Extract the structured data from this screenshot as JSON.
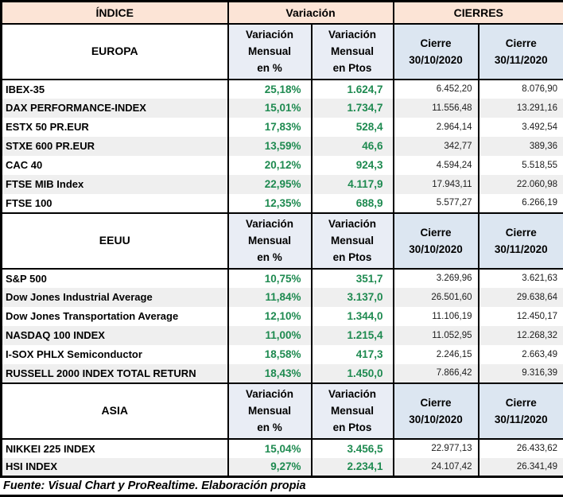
{
  "colors": {
    "header_bg": "#FCE4D6",
    "variacion_subheader_bg": "#E9EDF5",
    "cierre_subheader_bg": "#DCE6F1",
    "row_stripe_bg": "#EFEFEF",
    "positive_green": "#1E8A50",
    "border": "#000000"
  },
  "header": {
    "indice": "ÍNDICE",
    "variacion": "Variación",
    "cierres": "CIERRES"
  },
  "column_headers": {
    "pct_lines": [
      "Variación",
      "Mensual",
      "en %"
    ],
    "ptos_lines": [
      "Variación",
      "Mensual",
      "en Ptos"
    ],
    "cierre1_lines": [
      "Cierre",
      "30/10/2020"
    ],
    "cierre2_lines": [
      "Cierre",
      "30/11/2020"
    ]
  },
  "footer": {
    "source_note": "Fuente: Visual Chart y ProRealtime. Elaboración propia"
  },
  "chart_data": {
    "type": "table",
    "title": "Variación mensual y cierres de índices bursátiles",
    "columns": [
      "ÍNDICE",
      "Variación Mensual en %",
      "Variación Mensual en Ptos",
      "Cierre 30/10/2020",
      "Cierre 30/11/2020"
    ],
    "sections": [
      {
        "region": "EUROPA",
        "rows": [
          {
            "name": "IBEX-35",
            "pct": "25,18%",
            "ptos": "1.624,7",
            "cierre1": "6.452,20",
            "cierre2": "8.076,90"
          },
          {
            "name": "DAX PERFORMANCE-INDEX",
            "pct": "15,01%",
            "ptos": "1.734,7",
            "cierre1": "11.556,48",
            "cierre2": "13.291,16"
          },
          {
            "name": "ESTX 50 PR.EUR",
            "pct": "17,83%",
            "ptos": "528,4",
            "cierre1": "2.964,14",
            "cierre2": "3.492,54"
          },
          {
            "name": "STXE 600 PR.EUR",
            "pct": "13,59%",
            "ptos": "46,6",
            "cierre1": "342,77",
            "cierre2": "389,36"
          },
          {
            "name": "CAC 40",
            "pct": "20,12%",
            "ptos": "924,3",
            "cierre1": "4.594,24",
            "cierre2": "5.518,55"
          },
          {
            "name": "FTSE MIB Index",
            "pct": "22,95%",
            "ptos": "4.117,9",
            "cierre1": "17.943,11",
            "cierre2": "22.060,98"
          },
          {
            "name": "FTSE 100",
            "pct": "12,35%",
            "ptos": "688,9",
            "cierre1": "5.577,27",
            "cierre2": "6.266,19"
          }
        ]
      },
      {
        "region": "EEUU",
        "rows": [
          {
            "name": "S&P 500",
            "pct": "10,75%",
            "ptos": "351,7",
            "cierre1": "3.269,96",
            "cierre2": "3.621,63"
          },
          {
            "name": "Dow Jones Industrial Average",
            "pct": "11,84%",
            "ptos": "3.137,0",
            "cierre1": "26.501,60",
            "cierre2": "29.638,64"
          },
          {
            "name": "Dow Jones Transportation Average",
            "pct": "12,10%",
            "ptos": "1.344,0",
            "cierre1": "11.106,19",
            "cierre2": "12.450,17"
          },
          {
            "name": "NASDAQ 100 INDEX",
            "pct": "11,00%",
            "ptos": "1.215,4",
            "cierre1": "11.052,95",
            "cierre2": "12.268,32"
          },
          {
            "name": "I-SOX  PHLX Semiconductor",
            "pct": "18,58%",
            "ptos": "417,3",
            "cierre1": "2.246,15",
            "cierre2": "2.663,49"
          },
          {
            "name": "RUSSELL 2000 INDEX TOTAL RETURN",
            "pct": "18,43%",
            "ptos": "1.450,0",
            "cierre1": "7.866,42",
            "cierre2": "9.316,39"
          }
        ]
      },
      {
        "region": "ASIA",
        "rows": [
          {
            "name": "NIKKEI 225 INDEX",
            "pct": "15,04%",
            "ptos": "3.456,5",
            "cierre1": "22.977,13",
            "cierre2": "26.433,62"
          },
          {
            "name": "HSI INDEX",
            "pct": "9,27%",
            "ptos": "2.234,1",
            "cierre1": "24.107,42",
            "cierre2": "26.341,49"
          }
        ]
      }
    ]
  }
}
